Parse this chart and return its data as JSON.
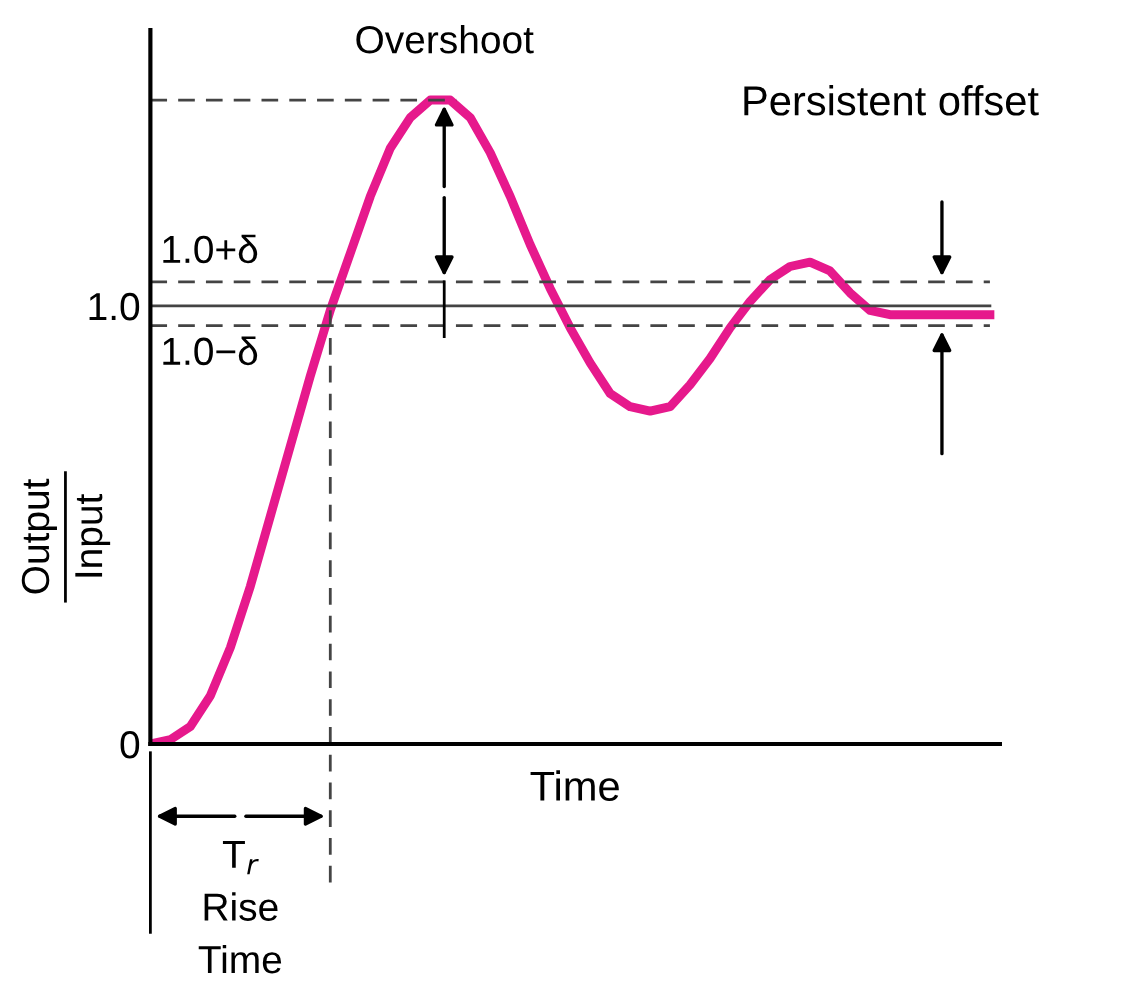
{
  "chart_data": {
    "type": "line",
    "xlabel": "Time",
    "ylabel": "Output\nInput",
    "categories": [
      null,
      null,
      null,
      null,
      null,
      null,
      null,
      null,
      null,
      null,
      null,
      null,
      null,
      null,
      null,
      null,
      null,
      null,
      null,
      null,
      null,
      null,
      null,
      null,
      null,
      null,
      null,
      null,
      null,
      null,
      null,
      null,
      null,
      null,
      null,
      null,
      null,
      null,
      null,
      null,
      null,
      null,
      null
    ],
    "series": [
      {
        "color": "#e6198c",
        "values": [
          0,
          0.01,
          0.04,
          0.11,
          0.22,
          0.36,
          0.52,
          0.68,
          0.84,
          0.99,
          1.12,
          1.25,
          1.36,
          1.43,
          1.47,
          1.47,
          1.43,
          1.35,
          1.25,
          1.14,
          1.04,
          0.95,
          0.87,
          0.8,
          0.77,
          0.76,
          0.77,
          0.82,
          0.88,
          0.95,
          1.01,
          1.06,
          1.09,
          1.1,
          1.08,
          1.03,
          0.99,
          0.98,
          0.98,
          0.98,
          0.98,
          0.98,
          0.98
        ]
      }
    ],
    "ylim": [
      0,
      1.63
    ],
    "yticks": [
      0,
      {
        "value": 1.0,
        "label": "1.0"
      }
    ],
    "ref_lines": [
      {
        "axis": "y",
        "value": 1.0,
        "line_style": "solid"
      },
      {
        "axis": "y",
        "value": 1.055,
        "label": "1.0+δ",
        "line_style": "dashed"
      },
      {
        "axis": "y",
        "value": 0.955,
        "label": "1.0−δ",
        "line_style": "dashed"
      },
      {
        "axis": "y",
        "value": 1.47,
        "line_style": "dashed"
      }
    ],
    "annotations": [
      "Overshoot",
      "Persistent offset",
      "T$_{r}$",
      "Rise",
      "Time"
    ],
    "grid": false,
    "legend": false,
    "marker": "none",
    "line_style": "solid"
  }
}
